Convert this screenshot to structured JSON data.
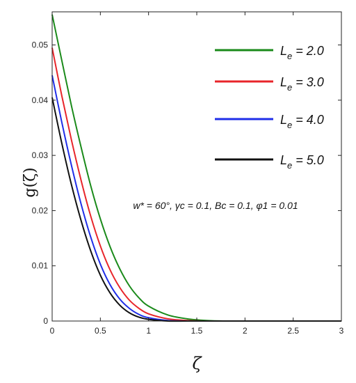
{
  "chart_data": {
    "type": "line",
    "title": "",
    "xlabel": "ζ",
    "ylabel": "g(ζ)",
    "xlim": [
      0,
      3
    ],
    "ylim": [
      0,
      0.056
    ],
    "grid": false,
    "legend_placement": "top-right",
    "x_ticks": [
      "0",
      "0.5",
      "1",
      "1.5",
      "2",
      "2.5",
      "3"
    ],
    "y_ticks": [
      "0",
      "0.01",
      "0.02",
      "0.03",
      "0.04",
      "0.05"
    ],
    "annotation": "w* = 60°, γc = 0.1, Bc = 0.1, φ1 = 0.01",
    "x": [
      0,
      0.1,
      0.2,
      0.3,
      0.4,
      0.5,
      0.6,
      0.7,
      0.8,
      0.9,
      1.0,
      1.2,
      1.4,
      1.6,
      1.8,
      2.0,
      2.5,
      3.0
    ],
    "series": [
      {
        "name": "Le = 2.0",
        "sub": "e",
        "value": "= 2.0",
        "color": "#1a8a1a",
        "values": [
          0.0555,
          0.0472,
          0.039,
          0.0315,
          0.0245,
          0.0185,
          0.0135,
          0.0095,
          0.0064,
          0.0042,
          0.0027,
          0.0011,
          0.0004,
          0.0001,
          0.0,
          0.0,
          0.0,
          0.0
        ]
      },
      {
        "name": "Le = 3.0",
        "sub": "e",
        "value": "= 3.0",
        "color": "#e8252a",
        "values": [
          0.0495,
          0.0408,
          0.0328,
          0.0255,
          0.019,
          0.0136,
          0.0093,
          0.0061,
          0.0038,
          0.0023,
          0.0013,
          0.0004,
          0.0001,
          0.0,
          0.0,
          0.0,
          0.0,
          0.0
        ]
      },
      {
        "name": "Le = 4.0",
        "sub": "e",
        "value": "= 4.0",
        "color": "#1f2ee8",
        "values": [
          0.0445,
          0.036,
          0.0282,
          0.0212,
          0.0152,
          0.0103,
          0.0066,
          0.004,
          0.0023,
          0.0012,
          0.0006,
          0.0001,
          0.0,
          0.0,
          0.0,
          0.0,
          0.0,
          0.0
        ]
      },
      {
        "name": "Le = 5.0",
        "sub": "e",
        "value": "= 5.0",
        "color": "#111111",
        "values": [
          0.0405,
          0.0322,
          0.0247,
          0.0182,
          0.0127,
          0.0083,
          0.0051,
          0.0029,
          0.0015,
          0.0007,
          0.0003,
          0.0,
          0.0,
          0.0,
          0.0,
          0.0,
          0.0,
          0.0
        ]
      }
    ]
  }
}
